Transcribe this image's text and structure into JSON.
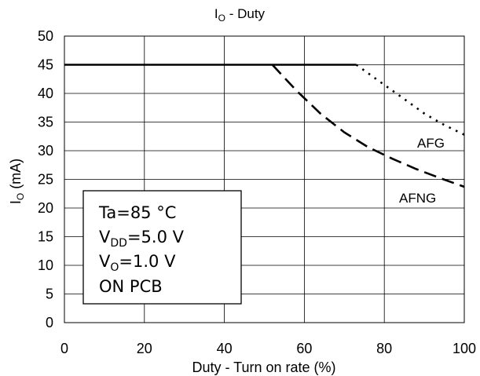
{
  "chart_data": {
    "type": "line",
    "title": {
      "main": "I",
      "sub": "O",
      "rest": " - Duty"
    },
    "xlabel": "Duty - Turn on rate (%)",
    "ylabel": {
      "main": "I",
      "sub": "O",
      "rest": " (mA)"
    },
    "xlim": [
      0,
      100
    ],
    "ylim": [
      0,
      50
    ],
    "xticks": [
      0,
      20,
      40,
      60,
      80,
      100
    ],
    "yticks": [
      0,
      5,
      10,
      15,
      20,
      25,
      30,
      35,
      40,
      45,
      50
    ],
    "grid": true,
    "series": [
      {
        "name": "AFG",
        "style": "solid-then-dotted",
        "x": [
          0,
          73,
          78,
          84,
          90,
          95,
          100
        ],
        "y": [
          45,
          45,
          42.5,
          39.5,
          36.5,
          34.5,
          32.8
        ]
      },
      {
        "name": "AFNG",
        "style": "dashed",
        "x": [
          52,
          58,
          64,
          70,
          76,
          82,
          88,
          94,
          100
        ],
        "y": [
          45,
          40.5,
          36.5,
          33.2,
          30.6,
          28.6,
          26.8,
          25.2,
          23.7
        ]
      }
    ],
    "annotations": [
      {
        "text": "AFG"
      },
      {
        "text": "AFNG"
      }
    ],
    "conditions": [
      {
        "main": "Ta=85 °C",
        "sub": "",
        "rest": ""
      },
      {
        "main": "V",
        "sub": "DD",
        "rest": "=5.0 V"
      },
      {
        "main": "V",
        "sub": "O",
        "rest": "=1.0 V"
      },
      {
        "main": "ON PCB",
        "sub": "",
        "rest": ""
      }
    ]
  }
}
